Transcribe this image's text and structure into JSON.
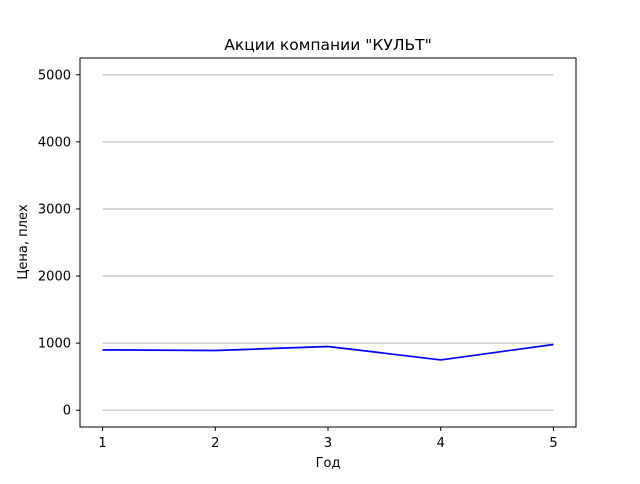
{
  "chart_data": {
    "type": "line",
    "title": "Акции компании \"КУЛЬТ\"",
    "xlabel": "Год",
    "ylabel": "Цена, плех",
    "x": [
      1,
      2,
      3,
      4,
      5
    ],
    "xticks": [
      "1",
      "2",
      "3",
      "4",
      "5"
    ],
    "yticks": [
      "0",
      "1000",
      "2000",
      "3000",
      "4000",
      "5000"
    ],
    "ytick_values": [
      0,
      1000,
      2000,
      3000,
      4000,
      5000
    ],
    "xlim": [
      0.8,
      5.2
    ],
    "ylim": [
      -250,
      5250
    ],
    "grid": "horizontal",
    "series": [
      {
        "values": [
          900,
          890,
          950,
          750,
          980
        ],
        "color": "#0000ff"
      }
    ],
    "grid_color": "#cccccc"
  }
}
